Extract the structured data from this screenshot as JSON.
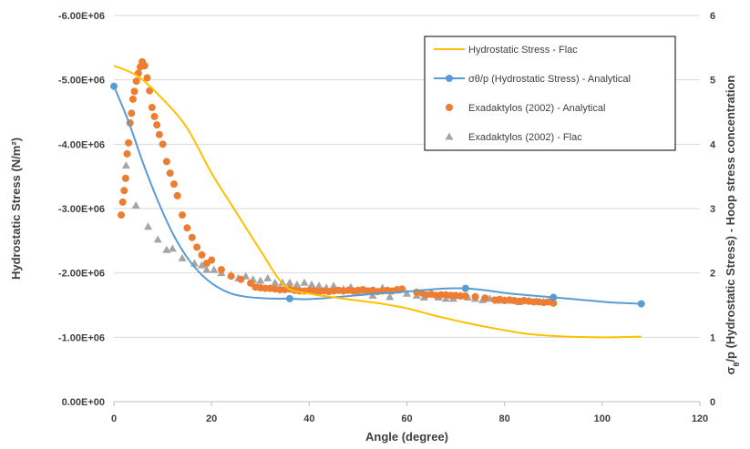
{
  "chart_data": {
    "type": "scatter",
    "xlabel": "Angle (degree)",
    "ylabel_left": "Hydrostatic Stress (N/m²)",
    "ylabel_right_parts": [
      "σ",
      "θ",
      "/p (Hydrostatic Stress) - Hoop stress concentration"
    ],
    "xlim": [
      0,
      120
    ],
    "ylim_left": [
      0,
      -6000000
    ],
    "ylim_right": [
      0,
      6
    ],
    "x_ticks": [
      "0",
      "20",
      "40",
      "60",
      "80",
      "100",
      "120"
    ],
    "y_left_ticks": [
      "0.00E+00",
      "-1.00E+06",
      "-2.00E+06",
      "-3.00E+06",
      "-4.00E+06",
      "-5.00E+06",
      "-6.00E+06"
    ],
    "y_right_ticks": [
      "0",
      "1",
      "2",
      "3",
      "4",
      "5",
      "6"
    ],
    "legend_position": "top-right",
    "grid": "horizontal",
    "series": [
      {
        "name": "Hydrostatic Stress - Flac",
        "axis": "left",
        "style": "line",
        "color": "#FFC000",
        "x": [
          0,
          5,
          10,
          15,
          20,
          25,
          30,
          35,
          40,
          45,
          50,
          55,
          60,
          65,
          70,
          75,
          80,
          85,
          90,
          95,
          100,
          105,
          108
        ],
        "y": [
          -5220000,
          -5050000,
          -4700000,
          -4250000,
          -3550000,
          -2950000,
          -2350000,
          -1800000,
          -1680000,
          -1620000,
          -1570000,
          -1520000,
          -1450000,
          -1350000,
          -1260000,
          -1180000,
          -1110000,
          -1050000,
          -1020000,
          -1005000,
          -1000000,
          -1005000,
          -1010000
        ]
      },
      {
        "name": "σθ/p (Hydrostatic Stress) - Analytical",
        "axis": "right",
        "style": "line-marker",
        "color": "#5B9BD5",
        "x": [
          0,
          3,
          6,
          9,
          12,
          15,
          18,
          21,
          24,
          27,
          30,
          33,
          36,
          39,
          42,
          45,
          48,
          51,
          54,
          57,
          60,
          63,
          66,
          69,
          72,
          75,
          78,
          81,
          84,
          87,
          90,
          93,
          96,
          99,
          102,
          105,
          108
        ],
        "y": [
          4.9,
          4.35,
          3.7,
          3.12,
          2.62,
          2.24,
          1.97,
          1.79,
          1.68,
          1.63,
          1.61,
          1.6,
          1.6,
          1.59,
          1.6,
          1.62,
          1.64,
          1.66,
          1.68,
          1.69,
          1.71,
          1.73,
          1.75,
          1.76,
          1.76,
          1.74,
          1.71,
          1.68,
          1.66,
          1.64,
          1.62,
          1.6,
          1.58,
          1.56,
          1.54,
          1.53,
          1.52
        ],
        "markers_x": [
          0,
          36,
          72,
          90,
          108
        ],
        "markers_y": [
          4.9,
          1.6,
          1.76,
          1.62,
          1.52
        ]
      },
      {
        "name": "Exadaktylos (2002) - Analytical",
        "axis": "right",
        "style": "marker-circle",
        "color": "#ED7D31",
        "x": [
          1.5,
          1.8,
          2.1,
          2.4,
          2.7,
          3.0,
          3.3,
          3.6,
          3.9,
          4.2,
          4.6,
          5.0,
          5.4,
          5.8,
          6.3,
          6.8,
          7.3,
          7.8,
          8.3,
          8.8,
          9.3,
          10.0,
          10.8,
          11.5,
          12.3,
          13.0,
          14.0,
          15.0,
          16.0,
          17.0,
          18.0,
          19.0,
          20.0,
          22.0,
          24.0,
          26.0,
          28.0,
          29.0,
          30.0,
          31.0,
          32.0,
          33.0,
          34.0,
          35.0,
          36.0,
          37.0,
          38.0,
          39.0,
          40.0,
          41.0,
          42.0,
          43.0,
          44.0,
          45.0,
          46.0,
          47.0,
          48.0,
          49.0,
          50.0,
          51.0,
          52.0,
          53.0,
          54.0,
          55.0,
          56.0,
          57.0,
          58.0,
          59.0,
          62.0,
          63.0,
          64.0,
          65.0,
          66.0,
          67.0,
          68.0,
          69.0,
          70.0,
          71.0,
          72.0,
          74.0,
          76.0,
          78.0,
          79.0,
          80.0,
          81.0,
          82.0,
          83.0,
          84.0,
          85.0,
          86.0,
          87.0,
          88.0,
          89.0,
          90.0
        ],
        "y": [
          2.9,
          3.1,
          3.28,
          3.47,
          3.85,
          4.02,
          4.33,
          4.48,
          4.7,
          4.82,
          4.98,
          5.1,
          5.2,
          5.28,
          5.22,
          5.03,
          4.83,
          4.57,
          4.43,
          4.3,
          4.15,
          4.0,
          3.73,
          3.55,
          3.38,
          3.2,
          2.9,
          2.7,
          2.55,
          2.4,
          2.28,
          2.15,
          2.2,
          2.05,
          1.95,
          1.9,
          1.84,
          1.78,
          1.77,
          1.76,
          1.76,
          1.75,
          1.74,
          1.74,
          1.75,
          1.73,
          1.72,
          1.72,
          1.73,
          1.72,
          1.71,
          1.72,
          1.71,
          1.72,
          1.73,
          1.72,
          1.73,
          1.72,
          1.73,
          1.74,
          1.72,
          1.73,
          1.71,
          1.72,
          1.73,
          1.72,
          1.74,
          1.75,
          1.7,
          1.69,
          1.66,
          1.67,
          1.65,
          1.66,
          1.66,
          1.65,
          1.65,
          1.64,
          1.64,
          1.63,
          1.61,
          1.58,
          1.59,
          1.57,
          1.58,
          1.57,
          1.56,
          1.57,
          1.56,
          1.55,
          1.55,
          1.54,
          1.55,
          1.53
        ]
      },
      {
        "name": "Exadaktylos (2002) - Flac",
        "axis": "right",
        "style": "marker-triangle",
        "color": "#A5A5A5",
        "x": [
          2.5,
          4.5,
          7.0,
          9.0,
          10.8,
          12.0,
          14.0,
          16.5,
          18.0,
          19.0,
          20.5,
          22.0,
          24.0,
          25.5,
          27.0,
          28.5,
          30.0,
          31.5,
          33.0,
          34.5,
          36.0,
          37.5,
          39.0,
          40.5,
          42.0,
          43.5,
          45.0,
          47.0,
          48.5,
          50.0,
          51.5,
          53.0,
          55.0,
          56.5,
          58.0,
          60.0,
          62.0,
          63.5,
          65.0,
          66.5,
          68.0,
          69.5,
          71.0,
          72.5,
          74.0,
          75.5,
          77.0,
          78.5,
          80.0,
          81.5,
          83.0,
          85.0,
          86.5,
          88.0,
          90.0
        ],
        "y": [
          3.67,
          3.05,
          2.72,
          2.52,
          2.36,
          2.38,
          2.23,
          2.15,
          2.12,
          2.05,
          2.05,
          2.0,
          1.97,
          1.92,
          1.95,
          1.9,
          1.88,
          1.92,
          1.85,
          1.85,
          1.85,
          1.82,
          1.85,
          1.82,
          1.8,
          1.77,
          1.8,
          1.75,
          1.78,
          1.7,
          1.72,
          1.65,
          1.77,
          1.63,
          1.73,
          1.68,
          1.65,
          1.62,
          1.68,
          1.62,
          1.6,
          1.6,
          1.65,
          1.62,
          1.6,
          1.58,
          1.6,
          1.57,
          1.58,
          1.57,
          1.55,
          1.57,
          1.56,
          1.55,
          1.57
        ]
      }
    ]
  }
}
